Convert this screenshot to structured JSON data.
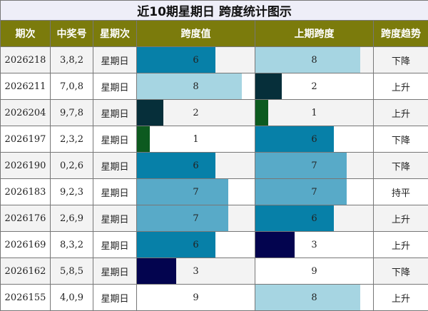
{
  "title": "近10期星期日 跨度统计图示",
  "headers": [
    "期次",
    "中奖号",
    "星期次",
    "跨度值",
    "上期跨度",
    "跨度趋势"
  ],
  "max_span": 9,
  "colors": {
    "0": "#062f3a",
    "1": "#0c5a1f",
    "2": "#062f3a",
    "3": "#03044f",
    "6": "#0780a8",
    "7": "#58aac8",
    "8": "#a6d5e2",
    "9": "#ffffff"
  },
  "rows": [
    {
      "issue": "2026218",
      "numbers": "3,8,2",
      "weekday": "星期日",
      "span": "6",
      "prev_span": "8",
      "trend": "下降"
    },
    {
      "issue": "2026211",
      "numbers": "7,0,8",
      "weekday": "星期日",
      "span": "8",
      "prev_span": "2",
      "trend": "上升"
    },
    {
      "issue": "2026204",
      "numbers": "9,7,8",
      "weekday": "星期日",
      "span": "2",
      "prev_span": "1",
      "trend": "上升"
    },
    {
      "issue": "2026197",
      "numbers": "2,3,2",
      "weekday": "星期日",
      "span": "1",
      "prev_span": "6",
      "trend": "下降"
    },
    {
      "issue": "2026190",
      "numbers": "0,2,6",
      "weekday": "星期日",
      "span": "6",
      "prev_span": "7",
      "trend": "下降"
    },
    {
      "issue": "2026183",
      "numbers": "9,2,3",
      "weekday": "星期日",
      "span": "7",
      "prev_span": "7",
      "trend": "持平"
    },
    {
      "issue": "2026176",
      "numbers": "2,6,9",
      "weekday": "星期日",
      "span": "7",
      "prev_span": "6",
      "trend": "上升"
    },
    {
      "issue": "2026169",
      "numbers": "8,3,2",
      "weekday": "星期日",
      "span": "6",
      "prev_span": "3",
      "trend": "上升"
    },
    {
      "issue": "2026162",
      "numbers": "5,8,5",
      "weekday": "星期日",
      "span": "3",
      "prev_span": "9",
      "trend": "下降"
    },
    {
      "issue": "2026155",
      "numbers": "4,0,9",
      "weekday": "星期日",
      "span": "9",
      "prev_span": "8",
      "trend": "上升"
    }
  ]
}
